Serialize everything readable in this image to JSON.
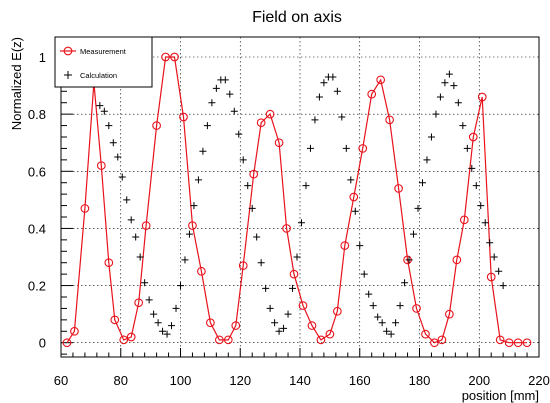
{
  "chart_data": {
    "type": "scatter",
    "title": "Field on axis",
    "xlabel": "position [mm]",
    "ylabel": "Normalized E(z)",
    "xlim": [
      60,
      220
    ],
    "ylim": [
      -0.05,
      1.07
    ],
    "xticks": [
      60,
      80,
      100,
      120,
      140,
      160,
      180,
      200,
      220
    ],
    "yticks": [
      0,
      0.2,
      0.4,
      0.6,
      0.8,
      1
    ],
    "grid": true,
    "legend_position": "top-left",
    "series": [
      {
        "name": "Measurement",
        "style": "line-with-open-circles",
        "color": "#e8121c",
        "x": [
          62,
          64.5,
          68,
          71,
          73.5,
          76,
          78,
          81,
          83.5,
          86,
          88.5,
          92,
          95,
          98,
          101,
          104,
          107,
          110,
          113,
          116,
          118.5,
          121,
          124.5,
          127,
          130,
          133,
          135.5,
          138,
          141,
          144,
          147,
          150,
          152.5,
          155,
          158,
          161,
          164,
          167,
          170,
          173,
          176,
          179,
          182,
          185,
          187.5,
          190,
          192.5,
          195,
          198,
          201,
          204,
          207,
          210,
          213,
          216
        ],
        "y": [
          0.0,
          0.04,
          0.47,
          0.91,
          0.62,
          0.28,
          0.08,
          0.01,
          0.02,
          0.14,
          0.41,
          0.76,
          1.0,
          1.0,
          0.79,
          0.41,
          0.25,
          0.07,
          0.01,
          0.01,
          0.06,
          0.27,
          0.59,
          0.77,
          0.8,
          0.7,
          0.4,
          0.24,
          0.13,
          0.06,
          0.01,
          0.03,
          0.11,
          0.34,
          0.51,
          0.68,
          0.87,
          0.92,
          0.78,
          0.54,
          0.29,
          0.12,
          0.03,
          0.0,
          0.01,
          0.1,
          0.29,
          0.43,
          0.72,
          0.86,
          0.23,
          0.01,
          0.0,
          0.0,
          0.0
        ]
      },
      {
        "name": "Calculation",
        "style": "plus-markers",
        "color": "#000000",
        "x": [
          73,
          74.5,
          76,
          77.5,
          79,
          80.5,
          82,
          83.5,
          85,
          86.5,
          88,
          89.5,
          91,
          92.5,
          94,
          95.5,
          97,
          98.5,
          100,
          101.5,
          103,
          104.5,
          106,
          107.5,
          109,
          110.5,
          112,
          113.5,
          115,
          116.5,
          118,
          119.5,
          121,
          122.5,
          124,
          125.5,
          127,
          128.5,
          130,
          131.5,
          133,
          134.5,
          136,
          137.5,
          139,
          140.5,
          142,
          143.5,
          145,
          146.5,
          148,
          149.5,
          151,
          152.5,
          154,
          155.5,
          157,
          158.5,
          160,
          161.5,
          163,
          164.5,
          166,
          167.5,
          169,
          170.5,
          172,
          173.5,
          175,
          176.5,
          178,
          179.5,
          181,
          182.5,
          184,
          185.5,
          187,
          188.5,
          190,
          191.5,
          193,
          194.5,
          196,
          197.5,
          199,
          200.5,
          202,
          203.5,
          205,
          206.5,
          208
        ],
        "y": [
          0.83,
          0.81,
          0.76,
          0.7,
          0.65,
          0.58,
          0.5,
          0.43,
          0.37,
          0.3,
          0.21,
          0.15,
          0.1,
          0.07,
          0.04,
          0.03,
          0.06,
          0.12,
          0.2,
          0.29,
          0.38,
          0.48,
          0.57,
          0.67,
          0.76,
          0.84,
          0.89,
          0.92,
          0.92,
          0.87,
          0.81,
          0.73,
          0.64,
          0.55,
          0.47,
          0.37,
          0.28,
          0.19,
          0.12,
          0.07,
          0.04,
          0.05,
          0.1,
          0.19,
          0.3,
          0.42,
          0.55,
          0.68,
          0.78,
          0.86,
          0.91,
          0.93,
          0.93,
          0.88,
          0.79,
          0.68,
          0.57,
          0.46,
          0.34,
          0.24,
          0.17,
          0.13,
          0.09,
          0.07,
          0.04,
          0.03,
          0.07,
          0.13,
          0.21,
          0.29,
          0.38,
          0.47,
          0.56,
          0.64,
          0.72,
          0.8,
          0.86,
          0.91,
          0.94,
          0.9,
          0.84,
          0.76,
          0.68,
          0.61,
          0.55,
          0.48,
          0.42,
          0.35,
          0.3,
          0.25,
          0.2
        ]
      }
    ]
  }
}
